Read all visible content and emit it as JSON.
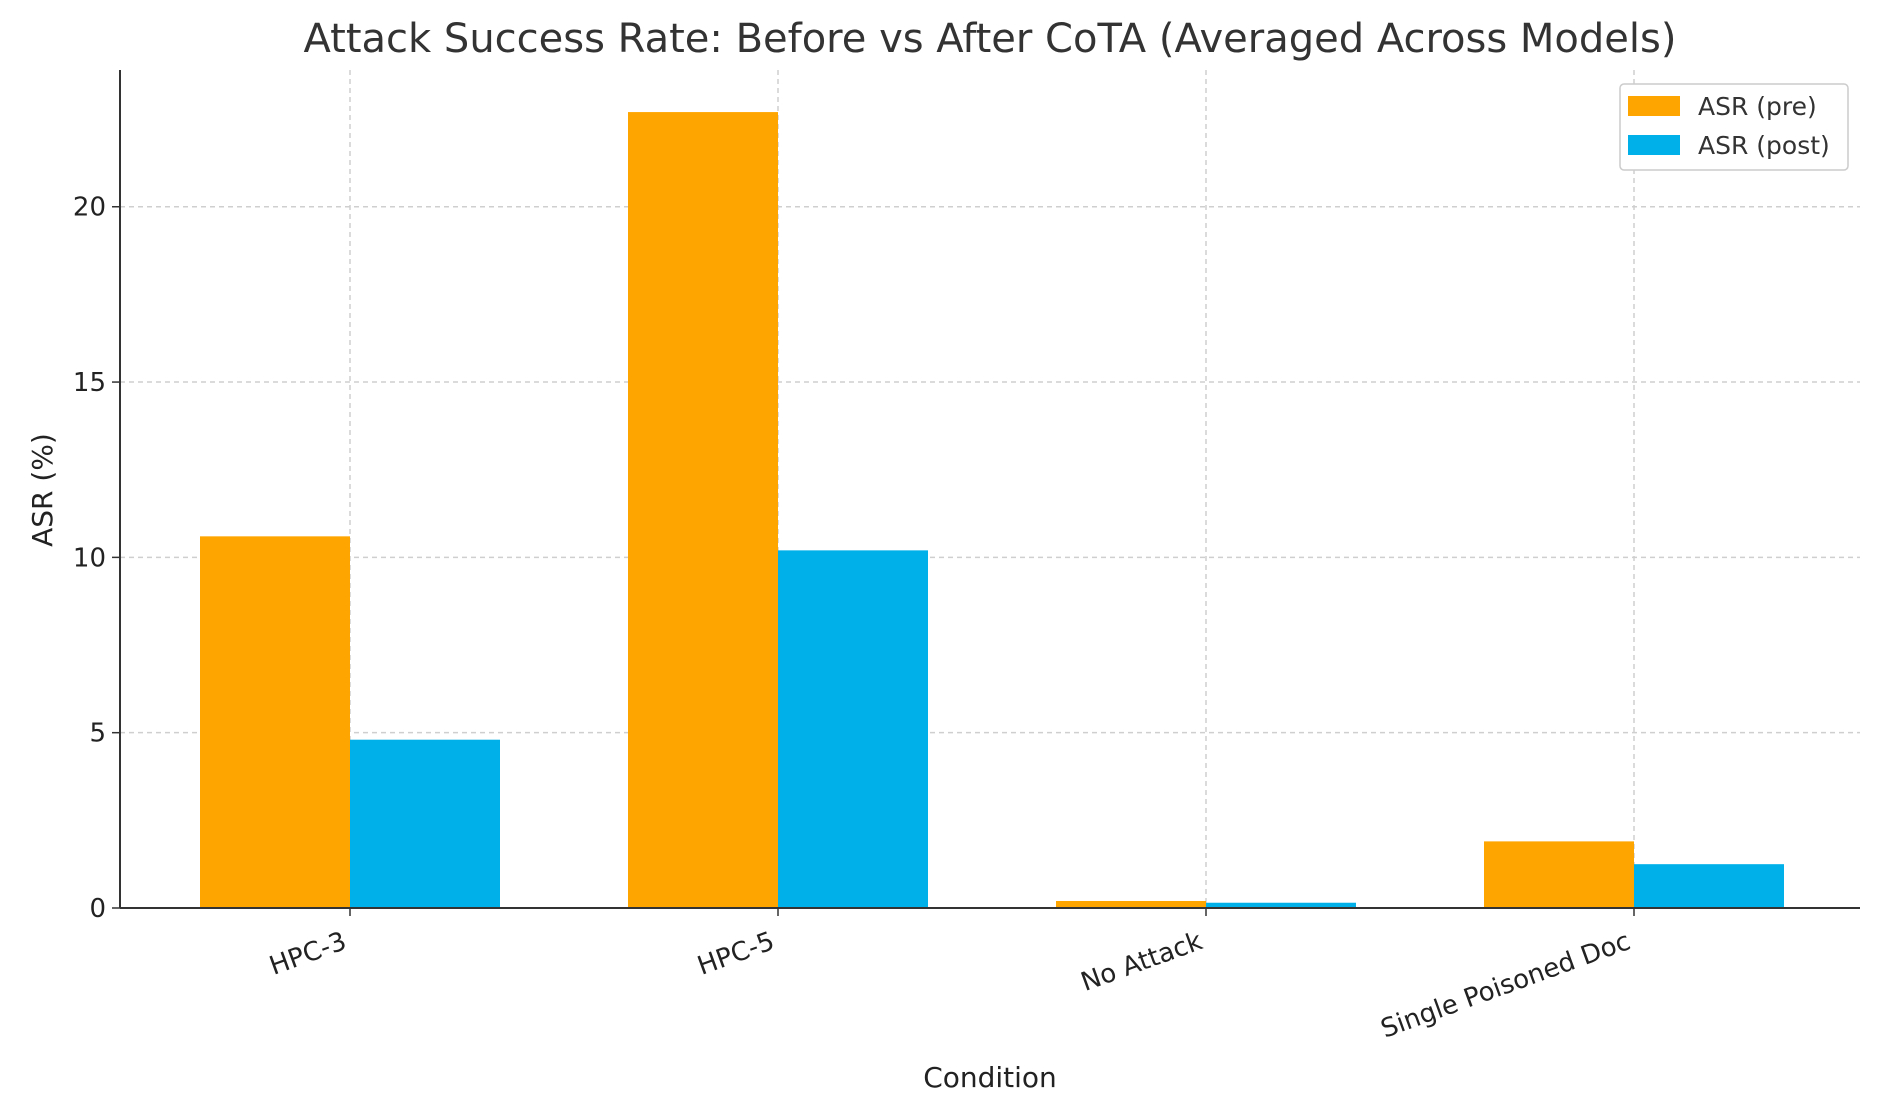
{
  "chart_data": {
    "type": "bar",
    "title": "Attack Success Rate: Before vs After CoTA (Averaged Across Models)",
    "xlabel": "Condition",
    "ylabel": "ASR (%)",
    "categories": [
      "HPC-3",
      "HPC-5",
      "No Attack",
      "Single Poisoned Doc"
    ],
    "series": [
      {
        "name": "ASR (pre)",
        "color": "#ffa500",
        "values": [
          10.6,
          22.7,
          0.2,
          1.9
        ]
      },
      {
        "name": "ASR (post)",
        "color": "#00b0e8",
        "values": [
          4.8,
          10.2,
          0.15,
          1.25
        ]
      }
    ],
    "ylim": [
      0,
      23.9
    ],
    "yticks": [
      0,
      5,
      10,
      15,
      20
    ],
    "grid": true,
    "legend_position": "top-right"
  }
}
